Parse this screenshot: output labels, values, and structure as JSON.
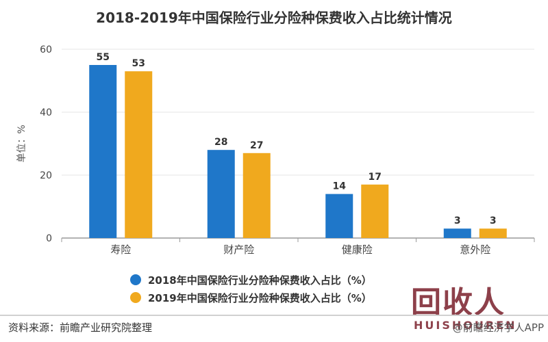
{
  "title": "2018-2019年中国保险行业分险种保费收入占比统计情况",
  "source": "资料来源：前瞻产业研究院整理",
  "credit": "@前瞻经济学人APP",
  "watermark": {
    "main": "回收人",
    "sub": "HUISHOUREN"
  },
  "colors": {
    "series_2018": "#1f77c9",
    "series_2019": "#f0a91e",
    "grid": "#e4e4e4",
    "axis": "#999999"
  },
  "chart_data": {
    "type": "bar",
    "title": "2018-2019年中国保险行业分险种保费收入占比统计情况",
    "ylabel": "单位：%",
    "xlabel": "",
    "ylim": [
      0,
      60
    ],
    "yticks": [
      0,
      20,
      40,
      60
    ],
    "categories": [
      "寿险",
      "财产险",
      "健康险",
      "意外险"
    ],
    "series": [
      {
        "name": "2018年中国保险行业分险种保费收入占比（%）",
        "values": [
          55,
          28,
          14,
          3
        ]
      },
      {
        "name": "2019年中国保险行业分险种保费收入占比（%）",
        "values": [
          53,
          27,
          17,
          3
        ]
      }
    ],
    "grid": true,
    "legend": "bottom"
  }
}
